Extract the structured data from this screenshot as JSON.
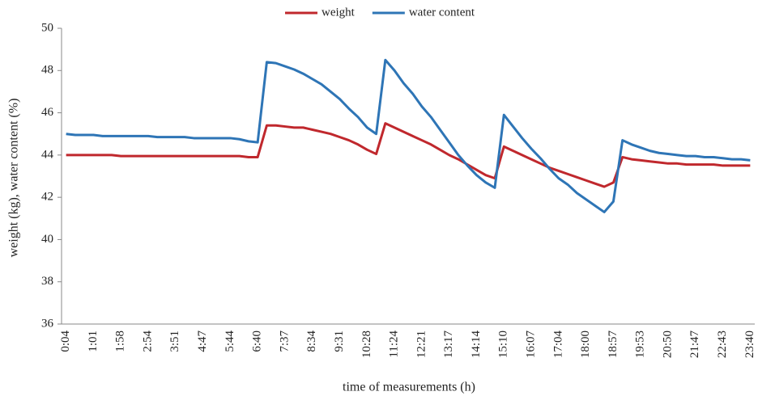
{
  "chart_data": {
    "type": "line",
    "x_label": "time of measurements (h)",
    "y_label": "weight (kg), water content (%)",
    "categories": [
      "0:04",
      null,
      null,
      "1:01",
      null,
      null,
      "1:58",
      null,
      null,
      "2:54",
      null,
      null,
      "3:51",
      null,
      null,
      "4:47",
      null,
      null,
      "5:44",
      null,
      null,
      "6:40",
      null,
      null,
      "7:37",
      null,
      null,
      "8:34",
      null,
      null,
      "9:31",
      null,
      null,
      "10:28",
      null,
      null,
      "11:24",
      null,
      null,
      "12:21",
      null,
      null,
      "13:17",
      null,
      null,
      "14:14",
      null,
      null,
      "15:10",
      null,
      null,
      "16:07",
      null,
      null,
      "17:04",
      null,
      null,
      "18:00",
      null,
      null,
      "18:57",
      null,
      null,
      "19:53",
      null,
      null,
      "20:50",
      null,
      null,
      "21:47",
      null,
      null,
      "22:43",
      null,
      null,
      "23:40"
    ],
    "series": [
      {
        "name": "weight",
        "color": "#c0282d",
        "values": [
          44.0,
          44.0,
          44.0,
          44.0,
          44.0,
          44.0,
          43.95,
          43.95,
          43.95,
          43.95,
          43.95,
          43.95,
          43.95,
          43.95,
          43.95,
          43.95,
          43.95,
          43.95,
          43.95,
          43.95,
          43.9,
          43.9,
          45.4,
          45.4,
          45.35,
          45.3,
          45.3,
          45.2,
          45.1,
          45.0,
          44.85,
          44.7,
          44.5,
          44.25,
          44.05,
          45.5,
          45.3,
          45.1,
          44.9,
          44.7,
          44.5,
          44.25,
          44.0,
          43.8,
          43.55,
          43.3,
          43.05,
          42.9,
          44.4,
          44.2,
          44.0,
          43.8,
          43.6,
          43.4,
          43.25,
          43.1,
          42.95,
          42.8,
          42.65,
          42.5,
          42.7,
          43.9,
          43.8,
          43.75,
          43.7,
          43.65,
          43.6,
          43.6,
          43.55,
          43.55,
          43.55,
          43.55,
          43.5,
          43.5,
          43.5,
          43.5
        ]
      },
      {
        "name": "water content",
        "color": "#2e75b6",
        "values": [
          45.0,
          44.95,
          44.95,
          44.95,
          44.9,
          44.9,
          44.9,
          44.9,
          44.9,
          44.9,
          44.85,
          44.85,
          44.85,
          44.85,
          44.8,
          44.8,
          44.8,
          44.8,
          44.8,
          44.75,
          44.65,
          44.6,
          48.4,
          48.35,
          48.2,
          48.05,
          47.85,
          47.6,
          47.35,
          47.0,
          46.65,
          46.2,
          45.8,
          45.3,
          45.0,
          48.5,
          48.0,
          47.4,
          46.9,
          46.3,
          45.8,
          45.2,
          44.6,
          44.0,
          43.5,
          43.05,
          42.7,
          42.45,
          45.9,
          45.35,
          44.8,
          44.3,
          43.85,
          43.35,
          42.9,
          42.6,
          42.2,
          41.9,
          41.6,
          41.3,
          41.8,
          44.7,
          44.5,
          44.35,
          44.2,
          44.1,
          44.05,
          44.0,
          43.95,
          43.95,
          43.9,
          43.9,
          43.85,
          43.8,
          43.8,
          43.75
        ]
      }
    ],
    "ylim": [
      36,
      50
    ],
    "yticks": [
      36,
      38,
      40,
      42,
      44,
      46,
      48,
      50
    ],
    "grid": false,
    "legend": "top"
  }
}
